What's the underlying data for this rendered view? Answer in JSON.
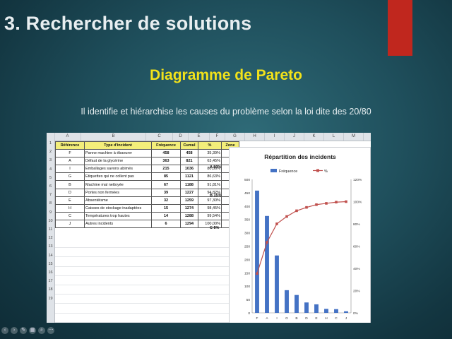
{
  "slide": {
    "title": "3. Rechercher de solutions",
    "subtitle": "Diagramme de Pareto",
    "description": "Il identifie et hiérarchise les causes du problème selon la loi dite des 20/80"
  },
  "sheet": {
    "columns": [
      "A",
      "B",
      "C",
      "D",
      "E",
      "F",
      "G",
      "H",
      "I",
      "J",
      "K",
      "L",
      "M"
    ],
    "rows": [
      "1",
      "2",
      "3",
      "4",
      "5",
      "6",
      "7",
      "8",
      "9",
      "10",
      "11",
      "12",
      "13",
      "14",
      "15",
      "16",
      "17",
      "18",
      "19"
    ],
    "headers": [
      "Référence",
      "Type d'incident",
      "Fréquence",
      "Cumul",
      "%",
      "Zone"
    ],
    "data": [
      [
        "F",
        "Panne machine à ébavurer",
        "458",
        "458",
        "35,39%"
      ],
      [
        "A",
        "Défaut de la glycérine",
        "363",
        "821",
        "63,45%"
      ],
      [
        "I",
        "Emballages savons abimés",
        "215",
        "1036",
        "80,06%"
      ],
      [
        "G",
        "Etiquettes qui ne collent pas",
        "85",
        "1121",
        "86,63%"
      ],
      [
        "B",
        "Machine mal nettoyée",
        "67",
        "1188",
        "91,81%"
      ],
      [
        "D",
        "Portes non fermées",
        "39",
        "1227",
        "94,82%"
      ],
      [
        "E",
        "Absentéisme",
        "32",
        "1259",
        "97,30%"
      ],
      [
        "H",
        "Caisses de stockage inadaptées",
        "15",
        "1274",
        "98,45%"
      ],
      [
        "C",
        "Températures trop hautes",
        "14",
        "1288",
        "99,54%"
      ],
      [
        "J",
        "Autres incidents",
        "6",
        "1294",
        "100,00%"
      ]
    ],
    "zones": [
      "A 80%",
      "B 15%",
      "C 5%"
    ]
  },
  "chart_data": {
    "type": "bar",
    "title": "Répartition des incidents",
    "categories": [
      "F",
      "A",
      "I",
      "G",
      "B",
      "D",
      "E",
      "H",
      "C",
      "J"
    ],
    "series": [
      {
        "name": "Fréquence",
        "type": "bar",
        "values": [
          458,
          363,
          215,
          85,
          67,
          39,
          32,
          15,
          14,
          6
        ],
        "color": "#4472c4"
      },
      {
        "name": "%",
        "type": "line",
        "axis": "right",
        "values": [
          35.39,
          63.45,
          80.06,
          86.63,
          91.81,
          94.82,
          97.3,
          98.45,
          99.54,
          100.0
        ],
        "color": "#c0504d"
      }
    ],
    "ylim": [
      0,
      500
    ],
    "yticks": [
      "0",
      "50",
      "100",
      "150",
      "200",
      "250",
      "300",
      "350",
      "400",
      "450",
      "500"
    ],
    "y2lim": [
      0,
      120
    ],
    "y2ticks": [
      "0%",
      "20%",
      "40%",
      "60%",
      "80%",
      "100%",
      "120%"
    ],
    "legend": "top",
    "grid": false
  },
  "colors": {
    "accent": "#c0271e",
    "subtitle": "#f2e21a",
    "header_fill": "#f3ee7a"
  }
}
